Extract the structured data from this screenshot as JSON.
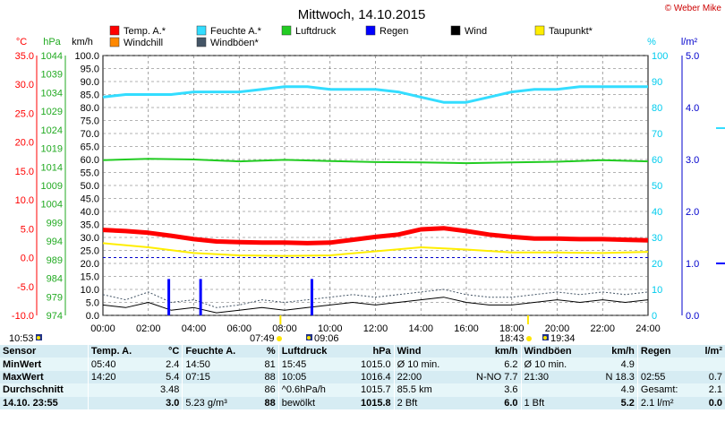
{
  "title": "Mittwoch, 14.10.2015",
  "copyright": "© Weber Mike",
  "legend": [
    {
      "label": "Temp. A.*",
      "color": "#ff0000"
    },
    {
      "label": "Feuchte A.*",
      "color": "#33ddff"
    },
    {
      "label": "Luftdruck",
      "color": "#22cc22"
    },
    {
      "label": "Regen",
      "color": "#0000ff"
    },
    {
      "label": "Wind",
      "color": "#000000"
    },
    {
      "label": "Taupunkt*",
      "color": "#ffee00"
    },
    {
      "label": "Windchill",
      "color": "#ff8800"
    },
    {
      "label": "Windböen*",
      "color": "#445566"
    }
  ],
  "axes": {
    "temp": {
      "unit": "°C",
      "ticks": [
        "35.0",
        "30.0",
        "25.0",
        "20.0",
        "15.0",
        "10.0",
        "5.0",
        "0.0",
        "-5.0",
        "-10.0"
      ],
      "color": "#ff0000"
    },
    "pressure": {
      "unit": "hPa",
      "ticks": [
        "1044",
        "1039",
        "1034",
        "1029",
        "1024",
        "1019",
        "1014",
        "1009",
        "1004",
        "999",
        "994",
        "989",
        "984",
        "979",
        "974"
      ],
      "color": "#22aa22"
    },
    "wind": {
      "unit": "km/h",
      "ticks": [
        "100.0",
        "95.0",
        "90.0",
        "85.0",
        "80.0",
        "75.0",
        "70.0",
        "65.0",
        "60.0",
        "55.0",
        "50.0",
        "45.0",
        "40.0",
        "35.0",
        "30.0",
        "25.0",
        "20.0",
        "15.0",
        "10.0",
        "5.0",
        "0.0"
      ]
    },
    "humidity": {
      "unit": "%",
      "ticks": [
        "100",
        "90",
        "80",
        "70",
        "60",
        "50",
        "40",
        "30",
        "20",
        "10",
        "0"
      ],
      "color": "#00ccee"
    },
    "rain": {
      "unit": "l/m²",
      "ticks": [
        "5.0",
        "4.0",
        "3.0",
        "2.0",
        "1.0",
        "0.0"
      ],
      "color": "#0000cc"
    },
    "time_ticks": [
      "00:00",
      "02:00",
      "04:00",
      "06:00",
      "08:00",
      "10:00",
      "12:00",
      "14:00",
      "16:00",
      "18:00",
      "20:00",
      "22:00",
      "24:00"
    ]
  },
  "sun": {
    "moonset": "10:53",
    "sunrise": "07:49",
    "moonrise": "09:06",
    "sunset": "18:43",
    "moon2": "19:34"
  },
  "chart_data": {
    "type": "line",
    "x_range": [
      "00:00",
      "24:00"
    ],
    "series": [
      {
        "name": "Temp. A.*",
        "axis": "°C",
        "color": "#ff0000",
        "x": [
          0,
          1,
          2,
          3,
          4,
          5,
          6,
          7,
          8,
          9,
          10,
          11,
          12,
          13,
          14,
          15,
          16,
          17,
          18,
          19,
          20,
          21,
          22,
          23,
          24
        ],
        "y": [
          4.8,
          4.6,
          4.3,
          3.8,
          3.2,
          2.8,
          2.7,
          2.6,
          2.6,
          2.5,
          2.6,
          3.1,
          3.6,
          4.0,
          4.9,
          5.1,
          4.6,
          4.0,
          3.6,
          3.3,
          3.3,
          3.2,
          3.2,
          3.1,
          3.0
        ]
      },
      {
        "name": "Feuchte A.*",
        "axis": "%",
        "color": "#33ddff",
        "x": [
          0,
          1,
          2,
          3,
          4,
          5,
          6,
          7,
          8,
          9,
          10,
          11,
          12,
          13,
          14,
          15,
          16,
          17,
          18,
          19,
          20,
          21,
          22,
          23,
          24
        ],
        "y": [
          84,
          85,
          85,
          85,
          86,
          86,
          86,
          87,
          88,
          88,
          87,
          87,
          87,
          86,
          84,
          82,
          82,
          84,
          86,
          87,
          87,
          88,
          88,
          88,
          88
        ]
      },
      {
        "name": "Luftdruck",
        "axis": "hPa",
        "color": "#22cc22",
        "x": [
          0,
          2,
          4,
          6,
          8,
          10,
          12,
          14,
          16,
          18,
          20,
          22,
          24
        ],
        "y": [
          1015.8,
          1016.2,
          1016.0,
          1015.5,
          1015.9,
          1015.6,
          1015.3,
          1015.2,
          1015.0,
          1015.2,
          1015.4,
          1015.8,
          1015.5
        ]
      },
      {
        "name": "Taupunkt*",
        "axis": "°C",
        "color": "#ffee00",
        "x": [
          0,
          2,
          4,
          6,
          8,
          10,
          12,
          14,
          16,
          18,
          20,
          22,
          24
        ],
        "y": [
          2.5,
          1.8,
          0.8,
          0.4,
          0.3,
          0.4,
          1.1,
          1.8,
          1.4,
          0.9,
          0.9,
          0.8,
          1.0
        ]
      },
      {
        "name": "Wind",
        "axis": "km/h",
        "color": "#000000",
        "x": [
          0,
          1,
          2,
          3,
          4,
          5,
          6,
          7,
          8,
          9,
          10,
          11,
          12,
          13,
          14,
          15,
          16,
          17,
          18,
          19,
          20,
          21,
          22,
          23,
          24
        ],
        "y": [
          4,
          3,
          5,
          2,
          3,
          1,
          2,
          3,
          2,
          3,
          4,
          5,
          4,
          5,
          6,
          7,
          5,
          4,
          4,
          5,
          6,
          5,
          6,
          5,
          6
        ]
      },
      {
        "name": "Windböen*",
        "axis": "km/h",
        "color": "#445566",
        "x": [
          0,
          1,
          2,
          3,
          4,
          5,
          6,
          7,
          8,
          9,
          10,
          11,
          12,
          13,
          14,
          15,
          16,
          17,
          18,
          19,
          20,
          21,
          22,
          23,
          24
        ],
        "y": [
          8,
          6,
          9,
          5,
          6,
          3,
          4,
          6,
          5,
          6,
          7,
          8,
          7,
          8,
          9,
          10,
          8,
          7,
          7,
          8,
          9,
          8,
          9,
          8,
          9
        ]
      },
      {
        "name": "Regen",
        "axis": "l/m²",
        "color": "#0000ff",
        "type": "bar",
        "x": [
          2.9,
          4.3,
          9.2
        ],
        "y": [
          0.7,
          0.7,
          0.7
        ]
      }
    ],
    "temp_range": [
      -10,
      35
    ],
    "humidity_range": [
      0,
      100
    ],
    "pressure_range": [
      974,
      1044
    ],
    "wind_range": [
      0,
      100
    ],
    "rain_range": [
      0,
      5
    ]
  },
  "table": {
    "headers": [
      "Sensor",
      "Temp. A.",
      "°C",
      "Feuchte A.",
      "%",
      "Luftdruck",
      "hPa",
      "Wind",
      "km/h",
      "Windböen",
      "km/h",
      "Regen",
      "l/m²"
    ],
    "rows": [
      [
        "MinWert",
        "05:40",
        "2.4",
        "14:50",
        "81",
        "15:45",
        "1015.0",
        "Ø 10 min.",
        "6.2",
        "Ø 10 min.",
        "4.9",
        "",
        ""
      ],
      [
        "MaxWert",
        "14:20",
        "5.4",
        "07:15",
        "88",
        "10:05",
        "1016.4",
        "22:00",
        "N-NO 7.7",
        "21:30",
        "N 18.3",
        "02:55",
        "0.7"
      ],
      [
        "Durchschnitt",
        "",
        "3.48",
        "",
        "86",
        "^0.6hPa/h",
        "1015.7",
        "85.5 km",
        "3.6",
        "",
        "4.9",
        "Gesamt:",
        "2.1"
      ],
      [
        "14.10. 23:55",
        "",
        "3.0",
        "5.23 g/m³",
        "88",
        "bewölkt",
        "1015.8",
        "2 Bft",
        "6.0",
        "1 Bft",
        "5.2",
        "2.1 l/m²",
        "0.0"
      ]
    ]
  }
}
